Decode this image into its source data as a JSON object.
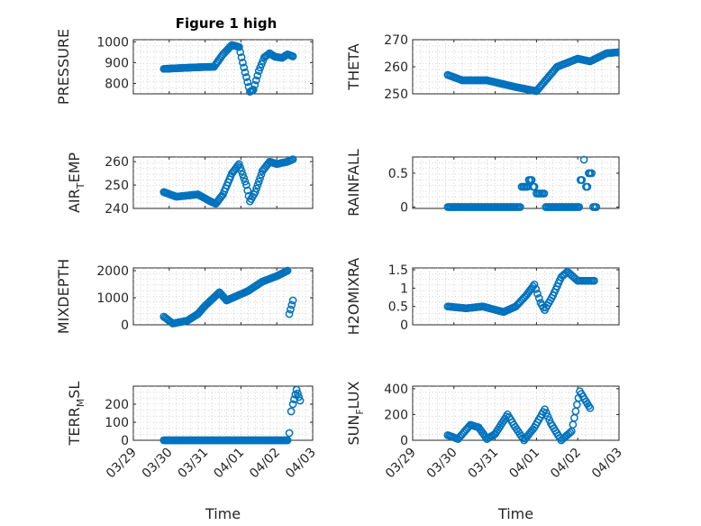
{
  "figure": {
    "title": "Figure 1 high"
  },
  "chart_data": [
    {
      "type": "scatter",
      "ylabel": "PRESSURE",
      "ylim": [
        750,
        1010
      ],
      "yticks": [
        {
          "v": 800,
          "label": "800"
        },
        {
          "v": 900,
          "label": "900"
        },
        {
          "v": 1000,
          "label": "1000"
        }
      ],
      "xticks": [],
      "xlabel": "",
      "title": "Figure 1 high",
      "color": "#0072bd",
      "series": [
        {
          "name": "",
          "points": [
            [
              -0.15,
              870
            ],
            [
              0.85,
              878
            ],
            [
              1.25,
              880
            ],
            [
              1.5,
              940
            ],
            [
              1.75,
              985
            ],
            [
              1.95,
              975
            ],
            [
              2.05,
              900
            ],
            [
              2.15,
              830
            ],
            [
              2.25,
              760
            ],
            [
              2.35,
              770
            ],
            [
              2.5,
              860
            ],
            [
              2.65,
              925
            ],
            [
              2.8,
              945
            ],
            [
              2.95,
              928
            ],
            [
              3.15,
              923
            ],
            [
              3.3,
              940
            ],
            [
              3.45,
              930
            ]
          ]
        }
      ]
    },
    {
      "type": "scatter",
      "ylabel": "THETA",
      "ylim": [
        250,
        270
      ],
      "yticks": [
        {
          "v": 250,
          "label": "250"
        },
        {
          "v": 260,
          "label": "260"
        },
        {
          "v": 270,
          "label": "270"
        }
      ],
      "xticks": [],
      "xlabel": "",
      "color": "#0072bd",
      "series": [
        {
          "name": "",
          "points": [
            [
              -0.15,
              257
            ],
            [
              0.2,
              255
            ],
            [
              0.8,
              255
            ],
            [
              1.5,
              252.5
            ],
            [
              2.0,
              251
            ],
            [
              2.5,
              260
            ],
            [
              3.0,
              263
            ],
            [
              3.3,
              262
            ],
            [
              3.7,
              265
            ],
            [
              4.5,
              266
            ],
            [
              5.0,
              267
            ]
          ]
        }
      ]
    },
    {
      "type": "scatter",
      "ylabel": "AIRTEMP",
      "ylim": [
        240,
        262
      ],
      "yticks": [
        {
          "v": 240,
          "label": "240"
        },
        {
          "v": 250,
          "label": "250"
        },
        {
          "v": 260,
          "label": "260"
        }
      ],
      "xticks": [],
      "xlabel": "",
      "color": "#0072bd",
      "series": [
        {
          "name": "",
          "points": [
            [
              -0.15,
              247
            ],
            [
              0.2,
              245
            ],
            [
              0.8,
              246
            ],
            [
              1.15,
              243
            ],
            [
              1.3,
              242
            ],
            [
              1.5,
              246
            ],
            [
              1.75,
              255
            ],
            [
              1.95,
              259
            ],
            [
              2.15,
              250
            ],
            [
              2.25,
              243
            ],
            [
              2.4,
              247
            ],
            [
              2.6,
              256
            ],
            [
              2.8,
              260
            ],
            [
              3.0,
              259
            ],
            [
              3.3,
              260
            ],
            [
              3.45,
              261
            ]
          ]
        }
      ]
    },
    {
      "type": "scatter",
      "ylabel": "RAINFALL",
      "ylim": [
        -0.02,
        0.74
      ],
      "yticks": [
        {
          "v": 0,
          "label": "0"
        },
        {
          "v": 0.5,
          "label": "0.5"
        }
      ],
      "xticks": [],
      "xlabel": "",
      "color": "#0072bd",
      "series": [
        {
          "name": "",
          "points": [
            [
              -0.15,
              0
            ],
            [
              1.5,
              0
            ],
            [
              1.75,
              0.3
            ],
            [
              1.85,
              0.4
            ],
            [
              1.95,
              0.3
            ],
            [
              2.0,
              0.2
            ],
            [
              2.15,
              0.2
            ],
            [
              2.3,
              0
            ],
            [
              3.0,
              0
            ],
            [
              3.1,
              0.4
            ],
            [
              3.15,
              0.7
            ],
            [
              3.2,
              0.3
            ],
            [
              3.3,
              0.5
            ],
            [
              3.45,
              0
            ]
          ]
        }
      ]
    },
    {
      "type": "scatter",
      "ylabel": "MIXDEPTH",
      "ylim": [
        0,
        2100
      ],
      "yticks": [
        {
          "v": 0,
          "label": "0"
        },
        {
          "v": 1000,
          "label": "1000"
        },
        {
          "v": 2000,
          "label": "2000"
        }
      ],
      "xticks": [],
      "xlabel": "",
      "color": "#0072bd",
      "series": [
        {
          "name": "",
          "points": [
            [
              -0.15,
              300
            ],
            [
              0.1,
              50
            ],
            [
              0.5,
              150
            ],
            [
              0.8,
              400
            ],
            [
              1.0,
              700
            ],
            [
              1.4,
              1200
            ],
            [
              1.6,
              900
            ],
            [
              2.2,
              1250
            ],
            [
              2.6,
              1600
            ],
            [
              3.0,
              1800
            ],
            [
              3.3,
              2000
            ],
            [
              3.35,
              400
            ],
            [
              3.45,
              900
            ]
          ]
        }
      ]
    },
    {
      "type": "scatter",
      "ylabel": "H2OMIXRA",
      "ylim": [
        0,
        1.55
      ],
      "yticks": [
        {
          "v": 0,
          "label": "0"
        },
        {
          "v": 0.5,
          "label": "0.5"
        },
        {
          "v": 1,
          "label": "1"
        },
        {
          "v": 1.5,
          "label": "1.5"
        }
      ],
      "xticks": [],
      "xlabel": "",
      "color": "#0072bd",
      "series": [
        {
          "name": "",
          "points": [
            [
              -0.15,
              0.5
            ],
            [
              0.3,
              0.45
            ],
            [
              0.7,
              0.5
            ],
            [
              1.2,
              0.35
            ],
            [
              1.5,
              0.5
            ],
            [
              1.75,
              0.8
            ],
            [
              1.95,
              1.1
            ],
            [
              2.1,
              0.6
            ],
            [
              2.2,
              0.4
            ],
            [
              2.4,
              0.8
            ],
            [
              2.6,
              1.3
            ],
            [
              2.75,
              1.45
            ],
            [
              3.0,
              1.2
            ],
            [
              3.4,
              1.2
            ]
          ]
        }
      ]
    },
    {
      "type": "scatter",
      "ylabel": "TERRMSL",
      "ylim": [
        0,
        300
      ],
      "yticks": [
        {
          "v": 0,
          "label": "0"
        },
        {
          "v": 100,
          "label": "100"
        },
        {
          "v": 200,
          "label": "200"
        }
      ],
      "xticks": [
        "03/29",
        "03/30",
        "03/31",
        "04/01",
        "04/02",
        "04/03"
      ],
      "xlabel": "Time",
      "color": "#0072bd",
      "series": [
        {
          "name": "",
          "points": [
            [
              -0.15,
              0
            ],
            [
              1.0,
              0
            ],
            [
              2.0,
              0
            ],
            [
              3.0,
              0
            ],
            [
              3.3,
              0
            ],
            [
              3.35,
              40
            ],
            [
              3.4,
              160
            ],
            [
              3.45,
              200
            ],
            [
              3.55,
              280
            ],
            [
              3.65,
              220
            ]
          ]
        }
      ]
    },
    {
      "type": "scatter",
      "ylabel": "SUNFLUX",
      "ylim": [
        0,
        420
      ],
      "yticks": [
        {
          "v": 0,
          "label": "0"
        },
        {
          "v": 200,
          "label": "200"
        },
        {
          "v": 400,
          "label": "400"
        }
      ],
      "xticks": [
        "03/29",
        "03/30",
        "03/31",
        "04/01",
        "04/02",
        "04/03"
      ],
      "xlabel": "Time",
      "color": "#0072bd",
      "series": [
        {
          "name": "",
          "points": [
            [
              -0.15,
              40
            ],
            [
              0.1,
              10
            ],
            [
              0.4,
              120
            ],
            [
              0.6,
              100
            ],
            [
              0.8,
              10
            ],
            [
              1.0,
              50
            ],
            [
              1.3,
              200
            ],
            [
              1.45,
              120
            ],
            [
              1.7,
              0
            ],
            [
              1.95,
              100
            ],
            [
              2.2,
              240
            ],
            [
              2.35,
              130
            ],
            [
              2.6,
              0
            ],
            [
              2.85,
              70
            ],
            [
              3.05,
              380
            ],
            [
              3.2,
              300
            ],
            [
              3.3,
              250
            ]
          ]
        }
      ]
    }
  ]
}
